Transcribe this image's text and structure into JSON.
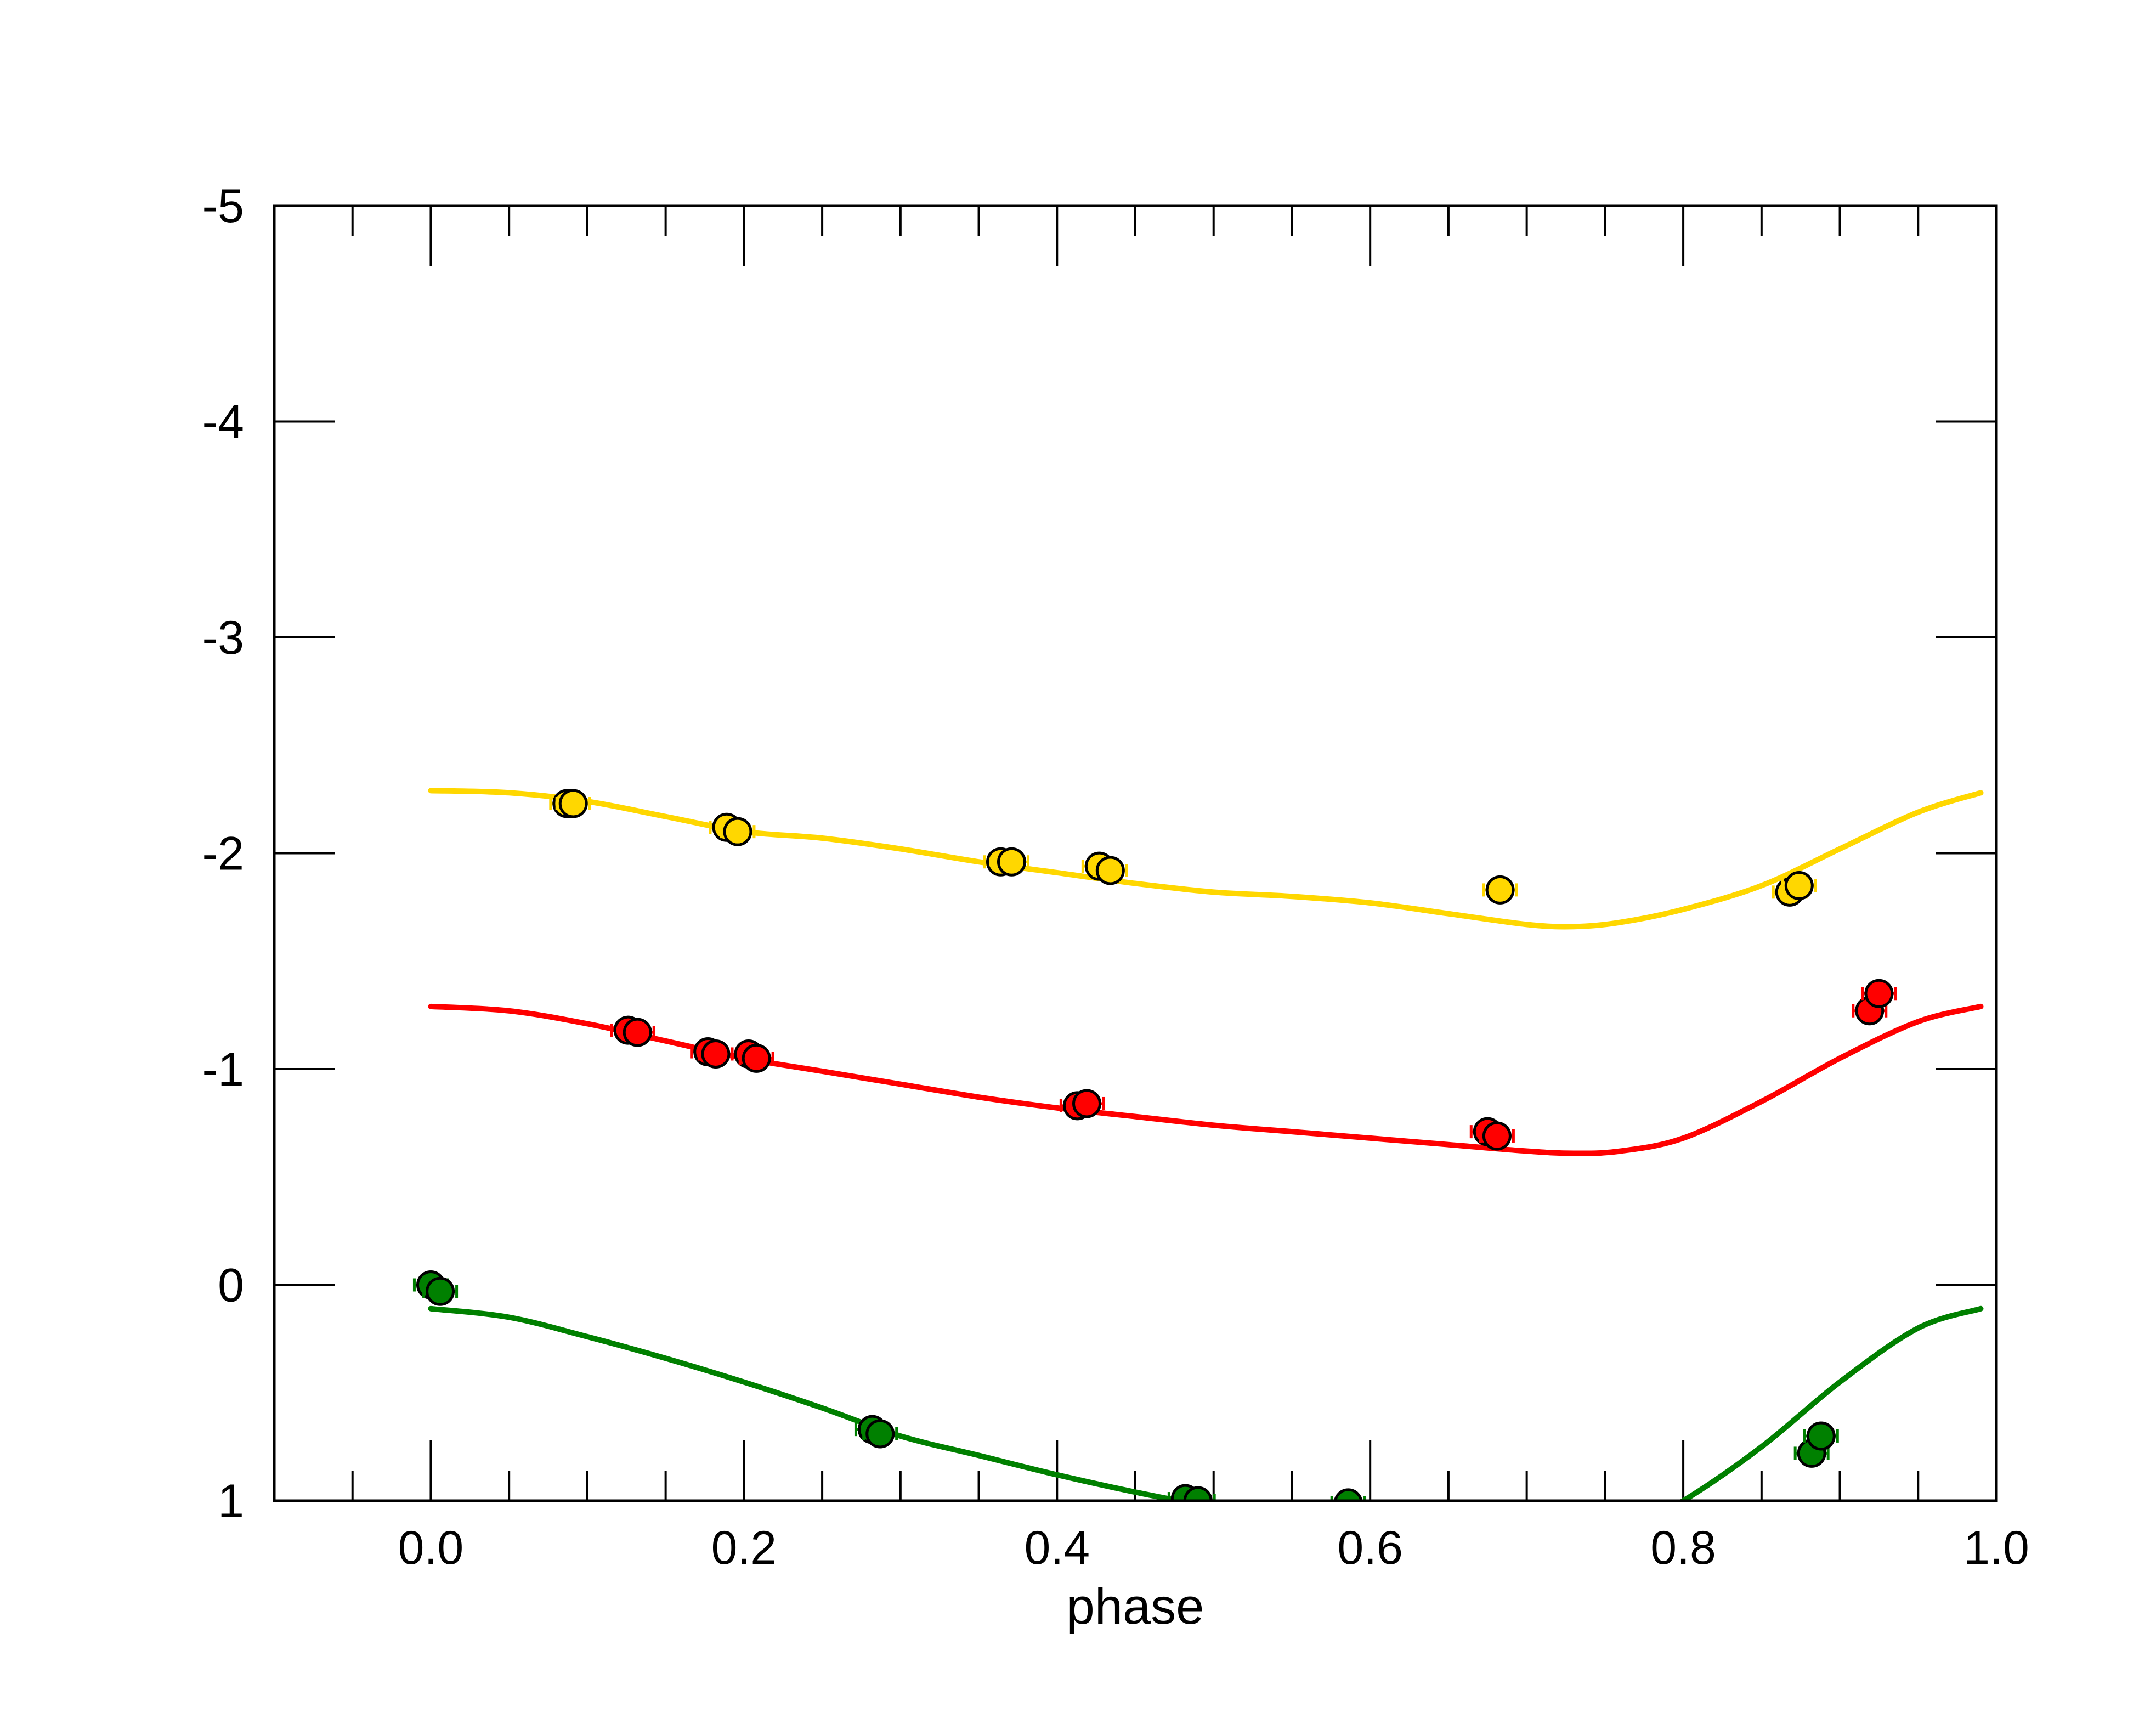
{
  "chart_data": {
    "type": "scatter",
    "title": "",
    "xlabel": "phase",
    "ylabel": "",
    "xlim": [
      -0.1,
      1.0
    ],
    "ylim": [
      -5,
      1
    ],
    "y_inverted": true,
    "grid": false,
    "legend": "none",
    "x_ticks": [
      {
        "value": 0.0,
        "label": "0.0"
      },
      {
        "value": 0.2,
        "label": "0.2"
      },
      {
        "value": 0.4,
        "label": "0.4"
      },
      {
        "value": 0.6,
        "label": "0.6"
      },
      {
        "value": 0.8,
        "label": "0.8"
      },
      {
        "value": 1.0,
        "label": "1.0"
      }
    ],
    "y_ticks": [
      {
        "value": -5,
        "label": "-5"
      },
      {
        "value": -4,
        "label": "-4"
      },
      {
        "value": -3,
        "label": "-3"
      },
      {
        "value": -2,
        "label": "-2"
      },
      {
        "value": -1,
        "label": "-1"
      },
      {
        "value": 0,
        "label": "0"
      },
      {
        "value": 1,
        "label": "1"
      }
    ],
    "series": [
      {
        "color": "#FFD700",
        "points": [
          {
            "x": 0.087,
            "y": -2.23
          },
          {
            "x": 0.091,
            "y": -2.23
          },
          {
            "x": 0.189,
            "y": -2.12
          },
          {
            "x": 0.196,
            "y": -2.1
          },
          {
            "x": 0.364,
            "y": -1.96
          },
          {
            "x": 0.371,
            "y": -1.96
          },
          {
            "x": 0.427,
            "y": -1.94
          },
          {
            "x": 0.434,
            "y": -1.92
          },
          {
            "x": 0.683,
            "y": -1.83
          },
          {
            "x": 0.868,
            "y": -1.82
          },
          {
            "x": 0.874,
            "y": -1.85
          }
        ],
        "fit": [
          {
            "x": 0.0,
            "y": -2.29
          },
          {
            "x": 0.05,
            "y": -2.28
          },
          {
            "x": 0.1,
            "y": -2.24
          },
          {
            "x": 0.15,
            "y": -2.17
          },
          {
            "x": 0.2,
            "y": -2.1
          },
          {
            "x": 0.25,
            "y": -2.07
          },
          {
            "x": 0.3,
            "y": -2.02
          },
          {
            "x": 0.35,
            "y": -1.96
          },
          {
            "x": 0.4,
            "y": -1.91
          },
          {
            "x": 0.45,
            "y": -1.86
          },
          {
            "x": 0.5,
            "y": -1.82
          },
          {
            "x": 0.55,
            "y": -1.8
          },
          {
            "x": 0.6,
            "y": -1.77
          },
          {
            "x": 0.65,
            "y": -1.72
          },
          {
            "x": 0.7,
            "y": -1.67
          },
          {
            "x": 0.73,
            "y": -1.66
          },
          {
            "x": 0.76,
            "y": -1.68
          },
          {
            "x": 0.8,
            "y": -1.74
          },
          {
            "x": 0.85,
            "y": -1.85
          },
          {
            "x": 0.9,
            "y": -2.02
          },
          {
            "x": 0.95,
            "y": -2.19
          },
          {
            "x": 0.99,
            "y": -2.28
          }
        ]
      },
      {
        "color": "#FF0000",
        "points": [
          {
            "x": 0.126,
            "y": -1.18
          },
          {
            "x": 0.132,
            "y": -1.17
          },
          {
            "x": 0.177,
            "y": -1.08
          },
          {
            "x": 0.182,
            "y": -1.07
          },
          {
            "x": 0.203,
            "y": -1.07
          },
          {
            "x": 0.208,
            "y": -1.05
          },
          {
            "x": 0.413,
            "y": -0.83
          },
          {
            "x": 0.419,
            "y": -0.84
          },
          {
            "x": 0.675,
            "y": -0.71
          },
          {
            "x": 0.681,
            "y": -0.69
          },
          {
            "x": 0.919,
            "y": -1.27
          },
          {
            "x": 0.925,
            "y": -1.35
          }
        ],
        "fit": [
          {
            "x": 0.0,
            "y": -1.29
          },
          {
            "x": 0.05,
            "y": -1.27
          },
          {
            "x": 0.1,
            "y": -1.21
          },
          {
            "x": 0.15,
            "y": -1.13
          },
          {
            "x": 0.2,
            "y": -1.05
          },
          {
            "x": 0.25,
            "y": -0.99
          },
          {
            "x": 0.3,
            "y": -0.93
          },
          {
            "x": 0.35,
            "y": -0.87
          },
          {
            "x": 0.4,
            "y": -0.82
          },
          {
            "x": 0.45,
            "y": -0.78
          },
          {
            "x": 0.5,
            "y": -0.74
          },
          {
            "x": 0.55,
            "y": -0.71
          },
          {
            "x": 0.6,
            "y": -0.68
          },
          {
            "x": 0.65,
            "y": -0.65
          },
          {
            "x": 0.7,
            "y": -0.62
          },
          {
            "x": 0.73,
            "y": -0.61
          },
          {
            "x": 0.76,
            "y": -0.62
          },
          {
            "x": 0.8,
            "y": -0.68
          },
          {
            "x": 0.85,
            "y": -0.85
          },
          {
            "x": 0.9,
            "y": -1.05
          },
          {
            "x": 0.95,
            "y": -1.22
          },
          {
            "x": 0.99,
            "y": -1.29
          }
        ]
      },
      {
        "color": "#008000",
        "points": [
          {
            "x": 0.0,
            "y": 0.0
          },
          {
            "x": 0.006,
            "y": 0.03
          },
          {
            "x": 0.282,
            "y": 0.67
          },
          {
            "x": 0.287,
            "y": 0.69
          },
          {
            "x": 0.482,
            "y": 0.99
          },
          {
            "x": 0.49,
            "y": 1.0
          },
          {
            "x": 0.586,
            "y": 1.01
          },
          {
            "x": 0.882,
            "y": 0.78
          },
          {
            "x": 0.888,
            "y": 0.7
          }
        ],
        "fit": [
          {
            "x": 0.0,
            "y": 0.11
          },
          {
            "x": 0.05,
            "y": 0.15
          },
          {
            "x": 0.1,
            "y": 0.24
          },
          {
            "x": 0.15,
            "y": 0.34
          },
          {
            "x": 0.2,
            "y": 0.45
          },
          {
            "x": 0.25,
            "y": 0.57
          },
          {
            "x": 0.3,
            "y": 0.7
          },
          {
            "x": 0.35,
            "y": 0.79
          },
          {
            "x": 0.4,
            "y": 0.88
          },
          {
            "x": 0.45,
            "y": 0.96
          },
          {
            "x": 0.5,
            "y": 1.03
          },
          {
            "x": 0.55,
            "y": 1.09
          },
          {
            "x": 0.6,
            "y": 1.15
          },
          {
            "x": 0.65,
            "y": 1.19
          },
          {
            "x": 0.7,
            "y": 1.21
          },
          {
            "x": 0.75,
            "y": 1.19
          },
          {
            "x": 0.8,
            "y": 1.0
          },
          {
            "x": 0.85,
            "y": 0.75
          },
          {
            "x": 0.9,
            "y": 0.45
          },
          {
            "x": 0.95,
            "y": 0.2
          },
          {
            "x": 0.99,
            "y": 0.11
          }
        ]
      }
    ]
  }
}
